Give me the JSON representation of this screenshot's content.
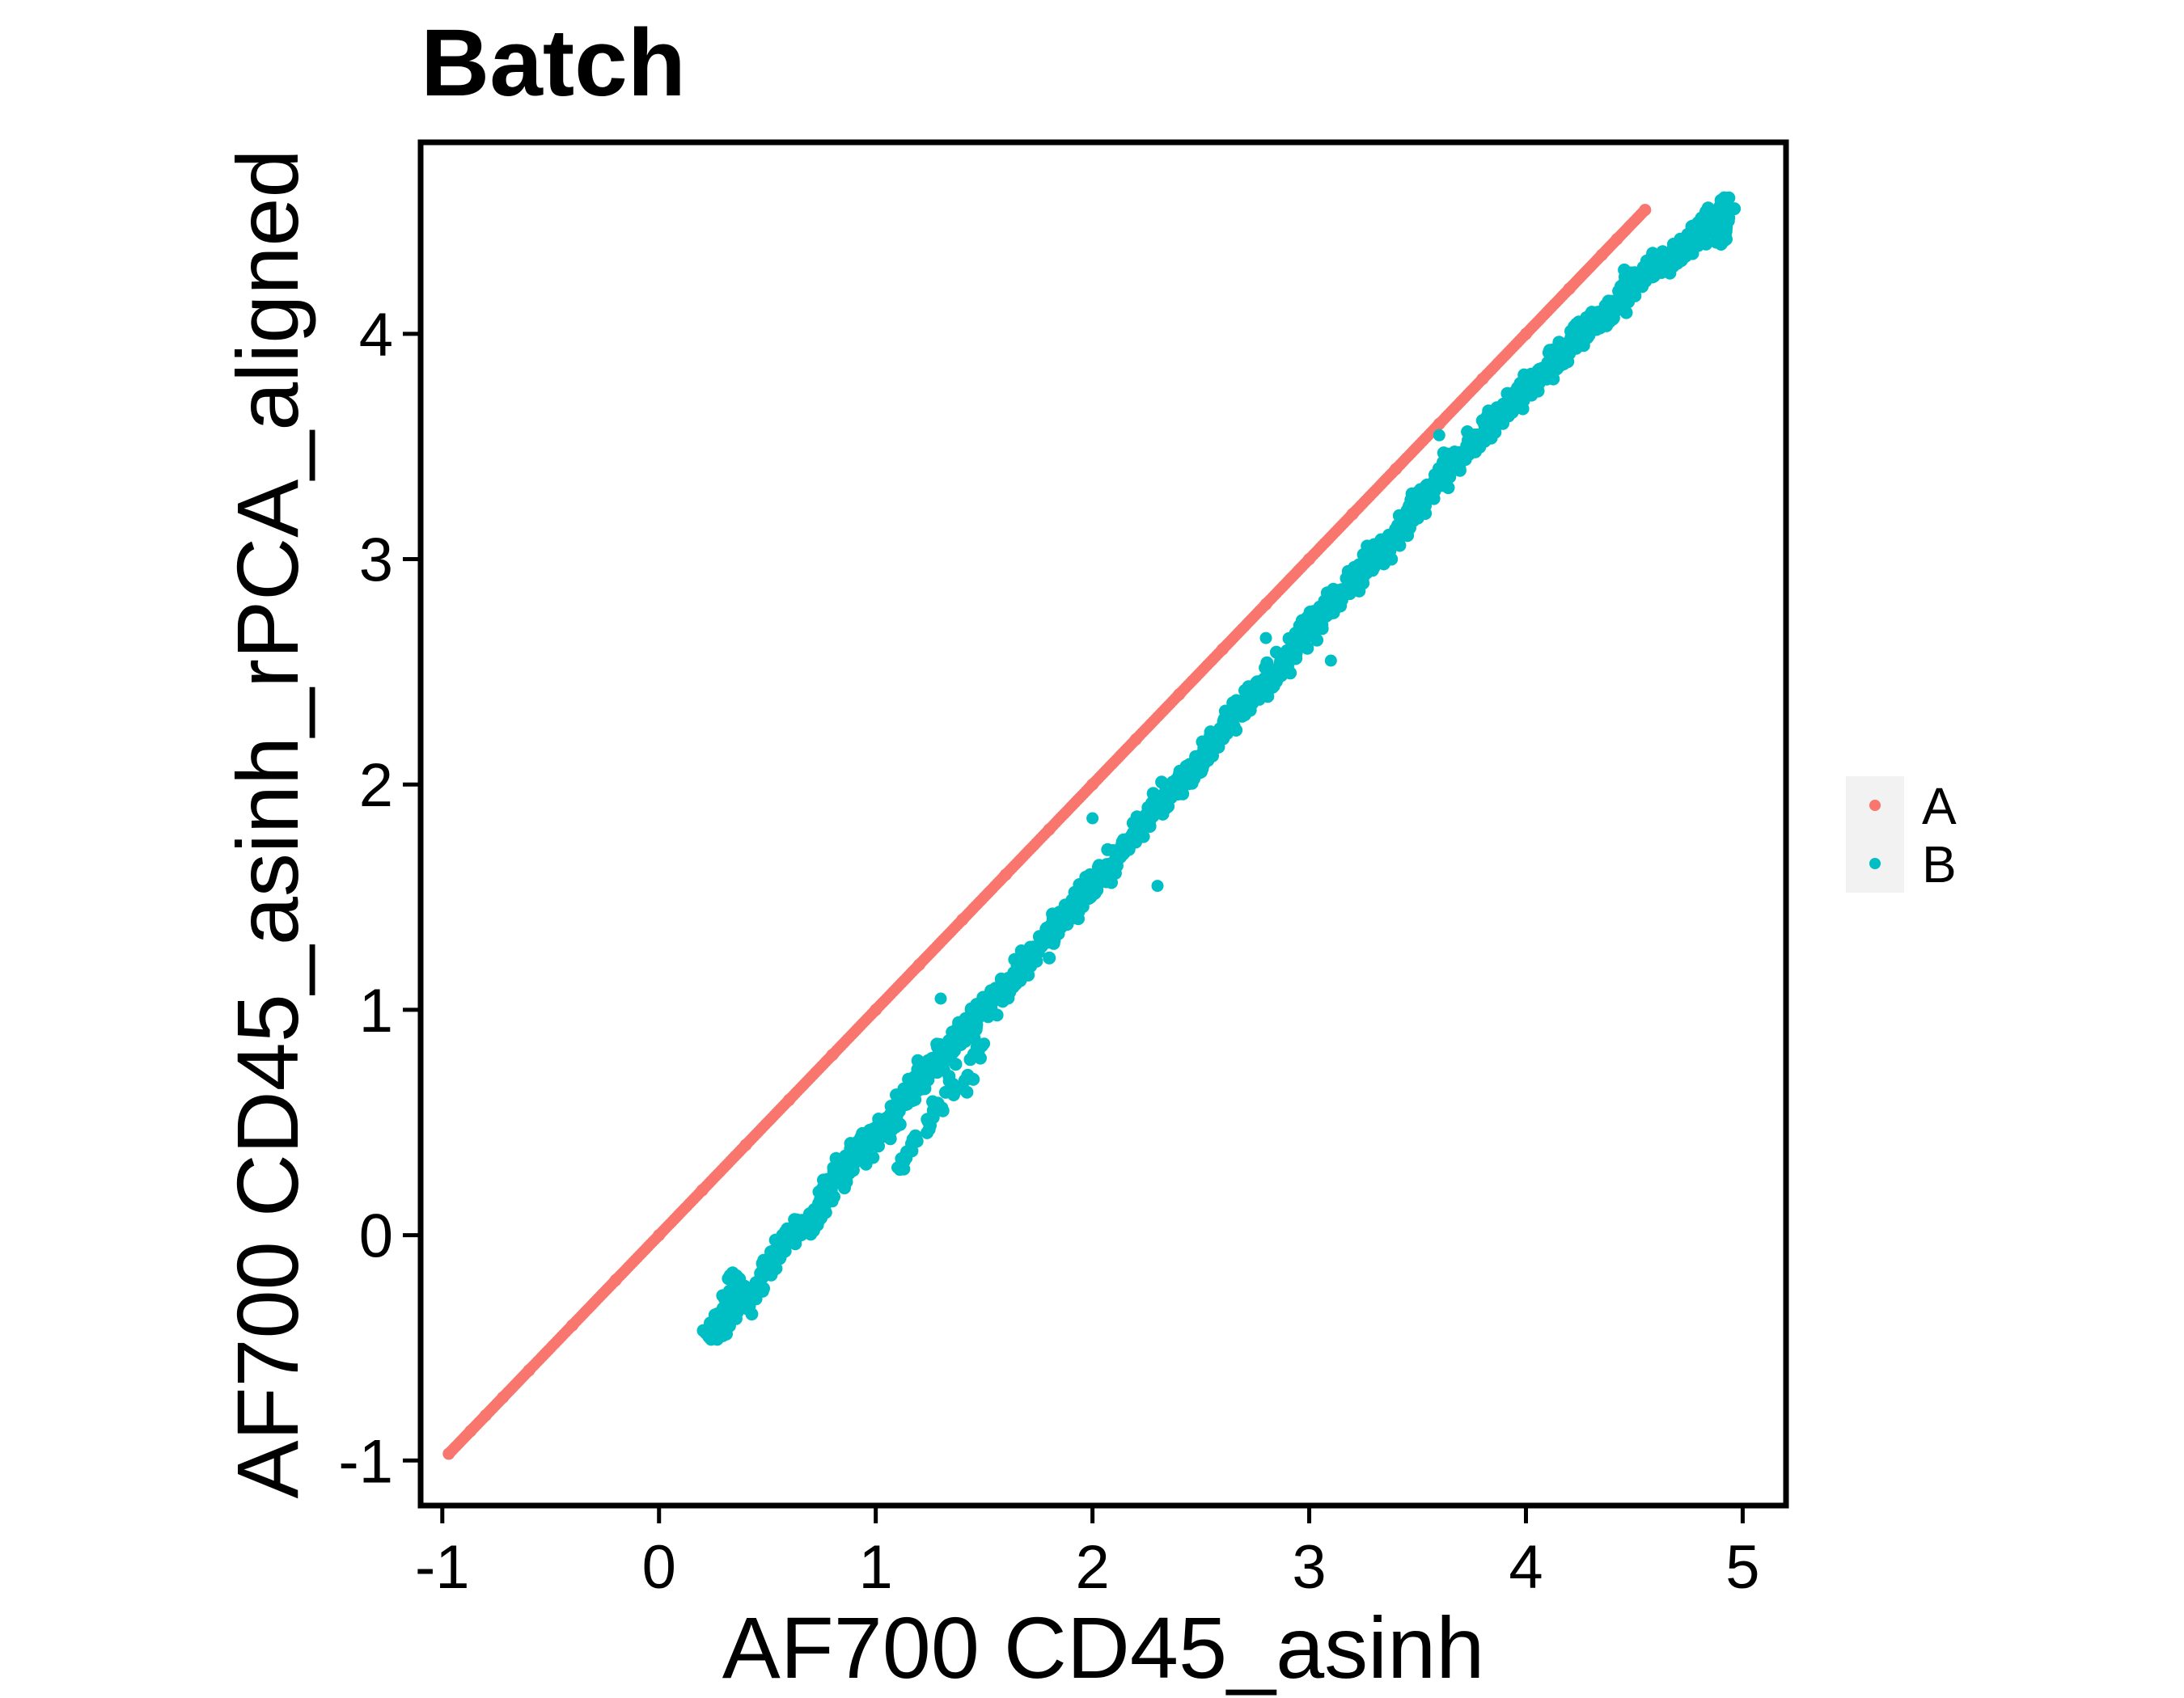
{
  "chart_data": {
    "type": "scatter",
    "title": "Batch",
    "xlabel": "AF700 CD45_asinh",
    "ylabel": "AF700 CD45_asinh_rPCA_aligned",
    "xlim": [
      -1.1,
      5.2
    ],
    "ylim": [
      -1.2,
      4.85
    ],
    "x_ticks": [
      -1,
      0,
      1,
      2,
      3,
      4,
      5
    ],
    "y_ticks": [
      -1,
      0,
      1,
      2,
      3,
      4
    ],
    "x_tick_labels": [
      "-1",
      "0",
      "1",
      "2",
      "3",
      "4",
      "5"
    ],
    "y_tick_labels": [
      "-1",
      "0",
      "1",
      "2",
      "3",
      "4"
    ],
    "grid": false,
    "legend_position": "right",
    "series": [
      {
        "name": "A",
        "color": "#F8766D",
        "description_points": [
          [
            -0.97,
            -0.97
          ],
          [
            -0.87,
            -0.87
          ],
          [
            -0.8,
            -0.8
          ],
          [
            -0.72,
            -0.72
          ],
          [
            -0.6,
            -0.6
          ],
          [
            -0.4,
            -0.4
          ],
          [
            -0.2,
            -0.2
          ],
          [
            0.0,
            0.0
          ],
          [
            0.2,
            0.2
          ],
          [
            0.4,
            0.4
          ],
          [
            0.6,
            0.6
          ],
          [
            0.8,
            0.8
          ],
          [
            1.0,
            1.0
          ],
          [
            1.2,
            1.2
          ],
          [
            1.4,
            1.4
          ],
          [
            1.6,
            1.6
          ],
          [
            1.8,
            1.8
          ],
          [
            2.0,
            2.0
          ],
          [
            2.2,
            2.2
          ],
          [
            2.4,
            2.4
          ],
          [
            2.6,
            2.6
          ],
          [
            2.8,
            2.8
          ],
          [
            3.0,
            3.0
          ],
          [
            3.2,
            3.2
          ],
          [
            3.4,
            3.4
          ],
          [
            3.6,
            3.6
          ],
          [
            3.8,
            3.8
          ],
          [
            4.0,
            4.0
          ],
          [
            4.2,
            4.2
          ],
          [
            4.35,
            4.35
          ],
          [
            4.42,
            4.42
          ],
          [
            4.55,
            4.55
          ]
        ]
      },
      {
        "name": "B",
        "color": "#00BFC4",
        "description_points": [
          [
            0.23,
            -0.44
          ],
          [
            0.3,
            -0.4
          ],
          [
            0.35,
            -0.2
          ],
          [
            0.4,
            -0.3
          ],
          [
            0.5,
            -0.15
          ],
          [
            0.6,
            0.0
          ],
          [
            0.7,
            0.05
          ],
          [
            0.8,
            0.25
          ],
          [
            0.9,
            0.35
          ],
          [
            1.0,
            0.45
          ],
          [
            1.1,
            0.55
          ],
          [
            1.2,
            0.7
          ],
          [
            1.3,
            0.8
          ],
          [
            1.4,
            0.9
          ],
          [
            1.5,
            1.0
          ],
          [
            1.6,
            1.1
          ],
          [
            1.7,
            1.2
          ],
          [
            1.8,
            1.35
          ],
          [
            1.9,
            1.45
          ],
          [
            2.0,
            1.55
          ],
          [
            2.1,
            1.65
          ],
          [
            2.2,
            1.8
          ],
          [
            2.3,
            1.9
          ],
          [
            2.4,
            2.0
          ],
          [
            2.5,
            2.1
          ],
          [
            2.6,
            2.25
          ],
          [
            2.7,
            2.35
          ],
          [
            2.8,
            2.45
          ],
          [
            2.9,
            2.55
          ],
          [
            3.0,
            2.7
          ],
          [
            3.1,
            2.8
          ],
          [
            3.2,
            2.9
          ],
          [
            3.3,
            3.0
          ],
          [
            3.4,
            3.1
          ],
          [
            3.5,
            3.25
          ],
          [
            3.6,
            3.35
          ],
          [
            3.7,
            3.45
          ],
          [
            3.8,
            3.55
          ],
          [
            3.9,
            3.65
          ],
          [
            4.0,
            3.75
          ],
          [
            4.1,
            3.85
          ],
          [
            4.2,
            3.95
          ],
          [
            4.3,
            4.05
          ],
          [
            4.4,
            4.1
          ],
          [
            4.5,
            4.25
          ],
          [
            4.6,
            4.3
          ],
          [
            4.7,
            4.35
          ],
          [
            4.8,
            4.45
          ],
          [
            4.85,
            4.5
          ],
          [
            4.9,
            4.45
          ],
          [
            4.92,
            4.58
          ],
          [
            1.1,
            0.3
          ],
          [
            1.5,
            0.85
          ],
          [
            2.3,
            1.55
          ],
          [
            3.1,
            2.55
          ],
          [
            0.8,
            0.15
          ],
          [
            2.0,
            1.85
          ],
          [
            2.8,
            2.65
          ],
          [
            3.6,
            3.55
          ],
          [
            1.3,
            1.05
          ]
        ]
      }
    ]
  }
}
